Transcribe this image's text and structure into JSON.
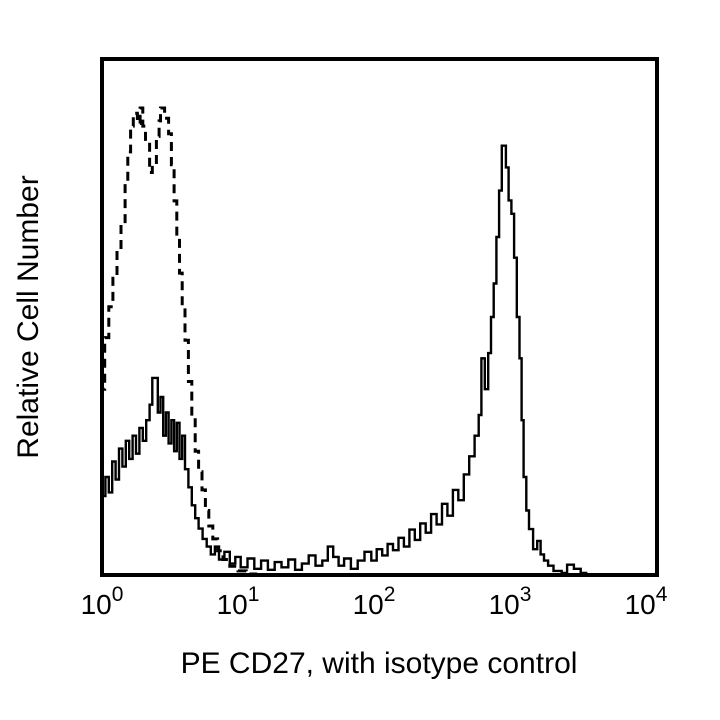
{
  "figure": {
    "background_color": "#ffffff",
    "line_color": "#000000",
    "title": ""
  },
  "chart_data": {
    "type": "line",
    "subtype": "flow-cytometry-step-histogram",
    "title": "",
    "xlabel": "PE CD27, with isotype control",
    "ylabel": "Relative Cell Number",
    "x_scale": "log10",
    "xlim_decades": [
      0,
      4
    ],
    "x_axis_overhang_decades": 0.08,
    "ylim": [
      0,
      1
    ],
    "grid": false,
    "legend_position": "none",
    "y_ticks": [],
    "tick_base": "10",
    "x_ticks": [
      {
        "exponent": 0
      },
      {
        "exponent": 1
      },
      {
        "exponent": 2
      },
      {
        "exponent": 3
      },
      {
        "exponent": 4
      }
    ],
    "series": [
      {
        "name": "PE CD27",
        "style": "solid",
        "color": "#000000",
        "points": [
          [
            0.0,
            0.153
          ],
          [
            0.025,
            0.19
          ],
          [
            0.05,
            0.16
          ],
          [
            0.075,
            0.22
          ],
          [
            0.1,
            0.185
          ],
          [
            0.125,
            0.245
          ],
          [
            0.15,
            0.21
          ],
          [
            0.175,
            0.26
          ],
          [
            0.2,
            0.225
          ],
          [
            0.225,
            0.27
          ],
          [
            0.25,
            0.235
          ],
          [
            0.275,
            0.285
          ],
          [
            0.3,
            0.26
          ],
          [
            0.325,
            0.3
          ],
          [
            0.35,
            0.33
          ],
          [
            0.37,
            0.382
          ],
          [
            0.41,
            0.315
          ],
          [
            0.43,
            0.345
          ],
          [
            0.45,
            0.27
          ],
          [
            0.47,
            0.315
          ],
          [
            0.49,
            0.255
          ],
          [
            0.51,
            0.3
          ],
          [
            0.53,
            0.24
          ],
          [
            0.55,
            0.295
          ],
          [
            0.57,
            0.225
          ],
          [
            0.59,
            0.27
          ],
          [
            0.61,
            0.205
          ],
          [
            0.635,
            0.17
          ],
          [
            0.66,
            0.135
          ],
          [
            0.685,
            0.11
          ],
          [
            0.71,
            0.09
          ],
          [
            0.74,
            0.07
          ],
          [
            0.77,
            0.055
          ],
          [
            0.8,
            0.04
          ],
          [
            0.83,
            0.055
          ],
          [
            0.86,
            0.03
          ],
          [
            0.9,
            0.045
          ],
          [
            0.94,
            0.022
          ],
          [
            0.98,
            0.035
          ],
          [
            1.02,
            0.015
          ],
          [
            1.07,
            0.032
          ],
          [
            1.12,
            0.012
          ],
          [
            1.17,
            0.028
          ],
          [
            1.22,
            0.01
          ],
          [
            1.27,
            0.025
          ],
          [
            1.32,
            0.015
          ],
          [
            1.37,
            0.03
          ],
          [
            1.42,
            0.01
          ],
          [
            1.47,
            0.022
          ],
          [
            1.52,
            0.038
          ],
          [
            1.57,
            0.018
          ],
          [
            1.62,
            0.028
          ],
          [
            1.66,
            0.055
          ],
          [
            1.7,
            0.035
          ],
          [
            1.74,
            0.018
          ],
          [
            1.78,
            0.032
          ],
          [
            1.83,
            0.012
          ],
          [
            1.88,
            0.028
          ],
          [
            1.93,
            0.045
          ],
          [
            1.98,
            0.028
          ],
          [
            2.02,
            0.05
          ],
          [
            2.06,
            0.038
          ],
          [
            2.1,
            0.06
          ],
          [
            2.14,
            0.048
          ],
          [
            2.18,
            0.072
          ],
          [
            2.22,
            0.055
          ],
          [
            2.26,
            0.088
          ],
          [
            2.3,
            0.068
          ],
          [
            2.34,
            0.1
          ],
          [
            2.38,
            0.082
          ],
          [
            2.42,
            0.118
          ],
          [
            2.46,
            0.098
          ],
          [
            2.5,
            0.138
          ],
          [
            2.54,
            0.115
          ],
          [
            2.58,
            0.165
          ],
          [
            2.62,
            0.145
          ],
          [
            2.66,
            0.195
          ],
          [
            2.7,
            0.23
          ],
          [
            2.74,
            0.27
          ],
          [
            2.77,
            0.31
          ],
          [
            2.79,
            0.42
          ],
          [
            2.815,
            0.36
          ],
          [
            2.84,
            0.43
          ],
          [
            2.86,
            0.5
          ],
          [
            2.88,
            0.565
          ],
          [
            2.9,
            0.655
          ],
          [
            2.92,
            0.745
          ],
          [
            2.94,
            0.832
          ],
          [
            2.97,
            0.79
          ],
          [
            2.99,
            0.726
          ],
          [
            3.01,
            0.7
          ],
          [
            3.03,
            0.615
          ],
          [
            3.05,
            0.5
          ],
          [
            3.07,
            0.42
          ],
          [
            3.085,
            0.3
          ],
          [
            3.1,
            0.19
          ],
          [
            3.12,
            0.125
          ],
          [
            3.14,
            0.089
          ],
          [
            3.17,
            0.05
          ],
          [
            3.2,
            0.066
          ],
          [
            3.225,
            0.04
          ],
          [
            3.25,
            0.028
          ],
          [
            3.28,
            0.018
          ],
          [
            3.32,
            0.008
          ],
          [
            3.38,
            0.004
          ],
          [
            3.42,
            0.02
          ],
          [
            3.47,
            0.012
          ],
          [
            3.52,
            0.004
          ],
          [
            3.56,
            0.0
          ],
          [
            4.0,
            0.0
          ]
        ]
      },
      {
        "name": "isotype control",
        "style": "dashed",
        "color": "#000000",
        "points": [
          [
            0.0,
            0.36
          ],
          [
            0.02,
            0.46
          ],
          [
            0.05,
            0.52
          ],
          [
            0.08,
            0.575
          ],
          [
            0.11,
            0.625
          ],
          [
            0.14,
            0.68
          ],
          [
            0.17,
            0.76
          ],
          [
            0.19,
            0.82
          ],
          [
            0.21,
            0.87
          ],
          [
            0.23,
            0.895
          ],
          [
            0.26,
            0.875
          ],
          [
            0.28,
            0.905
          ],
          [
            0.3,
            0.87
          ],
          [
            0.32,
            0.84
          ],
          [
            0.35,
            0.78
          ],
          [
            0.37,
            0.795
          ],
          [
            0.4,
            0.85
          ],
          [
            0.42,
            0.88
          ],
          [
            0.43,
            0.905
          ],
          [
            0.46,
            0.885
          ],
          [
            0.49,
            0.855
          ],
          [
            0.51,
            0.795
          ],
          [
            0.53,
            0.725
          ],
          [
            0.55,
            0.655
          ],
          [
            0.57,
            0.585
          ],
          [
            0.59,
            0.52
          ],
          [
            0.61,
            0.455
          ],
          [
            0.635,
            0.375
          ],
          [
            0.66,
            0.305
          ],
          [
            0.685,
            0.24
          ],
          [
            0.71,
            0.2
          ],
          [
            0.735,
            0.165
          ],
          [
            0.76,
            0.125
          ],
          [
            0.785,
            0.095
          ],
          [
            0.815,
            0.07
          ],
          [
            0.85,
            0.047
          ],
          [
            0.89,
            0.03
          ],
          [
            0.94,
            0.017
          ],
          [
            1.0,
            0.008
          ],
          [
            1.06,
            0.002
          ],
          [
            1.13,
            0.0
          ],
          [
            4.0,
            0.0
          ]
        ]
      }
    ]
  }
}
